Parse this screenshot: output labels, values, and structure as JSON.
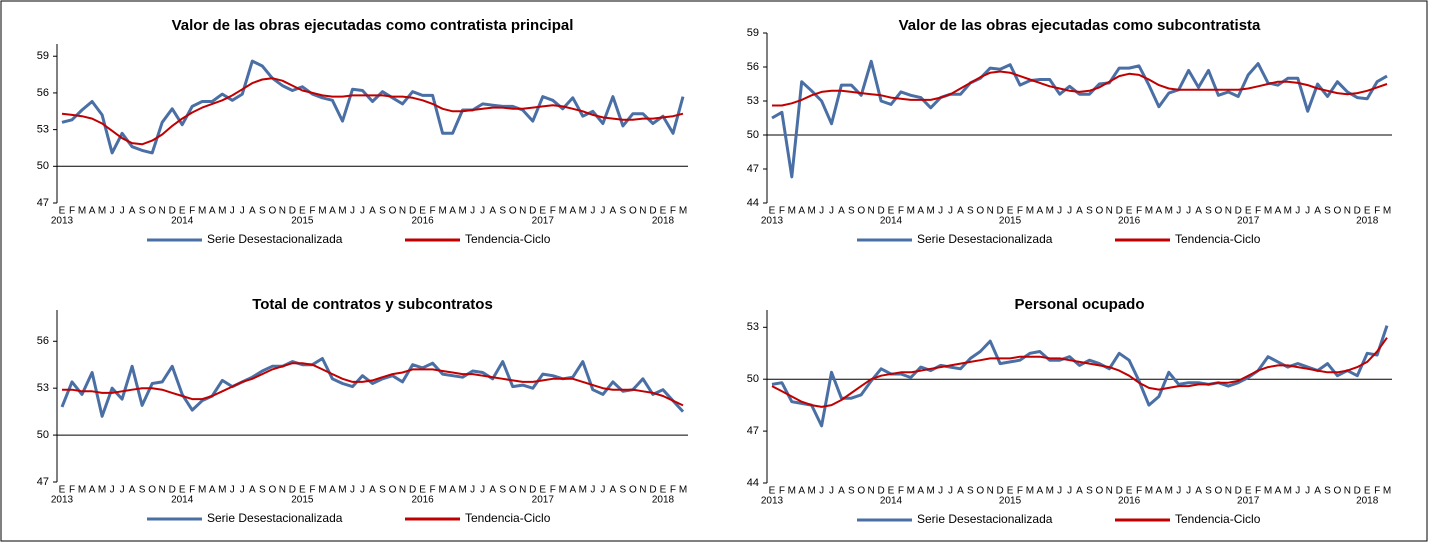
{
  "chart_data": [
    {
      "type": "line",
      "title": "Valor de las obras ejecutadas como contratista principal",
      "categories": [
        "E",
        "F",
        "M",
        "A",
        "M",
        "J",
        "J",
        "A",
        "S",
        "O",
        "N",
        "D",
        "E",
        "F",
        "M",
        "A",
        "M",
        "J",
        "J",
        "A",
        "S",
        "O",
        "N",
        "D",
        "E",
        "F",
        "M",
        "A",
        "M",
        "J",
        "J",
        "A",
        "S",
        "O",
        "N",
        "D",
        "E",
        "F",
        "M",
        "A",
        "M",
        "J",
        "J",
        "A",
        "S",
        "O",
        "N",
        "D",
        "E",
        "F",
        "M",
        "A",
        "M",
        "J",
        "J",
        "A",
        "S",
        "O",
        "N",
        "D",
        "E",
        "F",
        "M"
      ],
      "years": [
        "2013",
        null,
        null,
        null,
        null,
        null,
        null,
        null,
        null,
        null,
        null,
        null,
        "2014",
        null,
        null,
        null,
        null,
        null,
        null,
        null,
        null,
        null,
        null,
        null,
        "2015",
        null,
        null,
        null,
        null,
        null,
        null,
        null,
        null,
        null,
        null,
        null,
        "2016",
        null,
        null,
        null,
        null,
        null,
        null,
        null,
        null,
        null,
        null,
        null,
        "2017",
        null,
        null,
        null,
        null,
        null,
        null,
        null,
        null,
        null,
        null,
        null,
        "2018",
        null,
        null
      ],
      "series": [
        {
          "name": "Serie Desestacionalizada",
          "color": "#4a6fa5",
          "values": [
            53.6,
            53.8,
            54.6,
            55.3,
            54.2,
            51.1,
            52.7,
            51.6,
            51.3,
            51.1,
            53.6,
            54.7,
            53.4,
            54.9,
            55.3,
            55.3,
            55.9,
            55.4,
            55.9,
            58.6,
            58.2,
            57.2,
            56.6,
            56.2,
            56.5,
            55.9,
            55.6,
            55.4,
            53.7,
            56.3,
            56.2,
            55.3,
            56.1,
            55.6,
            55.1,
            56.1,
            55.8,
            55.8,
            52.7,
            52.7,
            54.6,
            54.6,
            55.1,
            55.0,
            54.9,
            54.9,
            54.6,
            53.7,
            55.7,
            55.4,
            54.7,
            55.6,
            54.1,
            54.5,
            53.5,
            55.7,
            53.3,
            54.3,
            54.3,
            53.5,
            54.1,
            52.7,
            55.7
          ]
        },
        {
          "name": "Tendencia-Ciclo",
          "color": "#c00000",
          "values": [
            54.3,
            54.2,
            54.1,
            53.9,
            53.5,
            52.9,
            52.3,
            51.9,
            51.8,
            52.1,
            52.6,
            53.3,
            53.9,
            54.4,
            54.8,
            55.1,
            55.4,
            55.8,
            56.3,
            56.8,
            57.1,
            57.2,
            57.0,
            56.6,
            56.2,
            56.0,
            55.8,
            55.7,
            55.7,
            55.8,
            55.8,
            55.8,
            55.8,
            55.7,
            55.7,
            55.6,
            55.4,
            55.1,
            54.7,
            54.5,
            54.5,
            54.6,
            54.7,
            54.8,
            54.8,
            54.7,
            54.7,
            54.8,
            54.9,
            55.0,
            54.9,
            54.7,
            54.5,
            54.2,
            54.0,
            53.9,
            53.8,
            53.8,
            53.9,
            53.9,
            54.0,
            54.1,
            54.3
          ]
        }
      ],
      "ylim": [
        47,
        60
      ],
      "yticks": [
        47,
        50,
        53,
        56,
        59
      ],
      "reference_line": 50,
      "legend": "bottom"
    },
    {
      "type": "line",
      "title": "Valor de las obras ejecutadas como subcontratista",
      "categories": [
        "E",
        "F",
        "M",
        "A",
        "M",
        "J",
        "J",
        "A",
        "S",
        "O",
        "N",
        "D",
        "E",
        "F",
        "M",
        "A",
        "M",
        "J",
        "J",
        "A",
        "S",
        "O",
        "N",
        "D",
        "E",
        "F",
        "M",
        "A",
        "M",
        "J",
        "J",
        "A",
        "S",
        "O",
        "N",
        "D",
        "E",
        "F",
        "M",
        "A",
        "M",
        "J",
        "J",
        "A",
        "S",
        "O",
        "N",
        "D",
        "E",
        "F",
        "M",
        "A",
        "M",
        "J",
        "J",
        "A",
        "S",
        "O",
        "N",
        "D",
        "E",
        "F",
        "M"
      ],
      "years": [
        "2013",
        null,
        null,
        null,
        null,
        null,
        null,
        null,
        null,
        null,
        null,
        null,
        "2014",
        null,
        null,
        null,
        null,
        null,
        null,
        null,
        null,
        null,
        null,
        null,
        "2015",
        null,
        null,
        null,
        null,
        null,
        null,
        null,
        null,
        null,
        null,
        null,
        "2016",
        null,
        null,
        null,
        null,
        null,
        null,
        null,
        null,
        null,
        null,
        null,
        "2017",
        null,
        null,
        null,
        null,
        null,
        null,
        null,
        null,
        null,
        null,
        null,
        "2018",
        null,
        null
      ],
      "series": [
        {
          "name": "Serie Desestacionalizada",
          "color": "#4a6fa5",
          "values": [
            51.5,
            52.0,
            46.3,
            54.7,
            53.9,
            53.0,
            51.0,
            54.4,
            54.4,
            53.5,
            56.5,
            53.0,
            52.7,
            53.8,
            53.5,
            53.3,
            52.4,
            53.3,
            53.6,
            53.6,
            54.6,
            55.0,
            55.9,
            55.8,
            56.2,
            54.4,
            54.8,
            54.9,
            54.9,
            53.6,
            54.3,
            53.6,
            53.6,
            54.5,
            54.6,
            55.9,
            55.9,
            56.1,
            54.4,
            52.5,
            53.7,
            54.0,
            55.7,
            54.2,
            55.7,
            53.5,
            53.8,
            53.4,
            55.3,
            56.3,
            54.6,
            54.4,
            55.0,
            55.0,
            52.1,
            54.5,
            53.4,
            54.7,
            53.8,
            53.3,
            53.2,
            54.7,
            55.2
          ]
        },
        {
          "name": "Tendencia-Ciclo",
          "color": "#c00000",
          "values": [
            52.6,
            52.6,
            52.8,
            53.1,
            53.5,
            53.8,
            53.9,
            53.9,
            53.8,
            53.7,
            53.6,
            53.5,
            53.3,
            53.2,
            53.1,
            53.1,
            53.1,
            53.3,
            53.6,
            54.1,
            54.6,
            55.1,
            55.5,
            55.6,
            55.5,
            55.2,
            54.9,
            54.6,
            54.3,
            54.1,
            53.9,
            53.8,
            53.9,
            54.2,
            54.7,
            55.2,
            55.4,
            55.3,
            54.9,
            54.4,
            54.1,
            54.0,
            54.0,
            54.0,
            54.0,
            54.0,
            54.0,
            54.0,
            54.1,
            54.3,
            54.5,
            54.7,
            54.7,
            54.6,
            54.4,
            54.1,
            53.9,
            53.7,
            53.6,
            53.7,
            53.9,
            54.2,
            54.5
          ]
        }
      ],
      "ylim": [
        44,
        59
      ],
      "yticks": [
        44,
        47,
        50,
        53,
        56,
        59
      ],
      "reference_line": 50,
      "legend": "bottom"
    },
    {
      "type": "line",
      "title": "Total de contratos y subcontratos",
      "categories": [
        "E",
        "F",
        "M",
        "A",
        "M",
        "J",
        "J",
        "A",
        "S",
        "O",
        "N",
        "D",
        "E",
        "F",
        "M",
        "A",
        "M",
        "J",
        "J",
        "A",
        "S",
        "O",
        "N",
        "D",
        "E",
        "F",
        "M",
        "A",
        "M",
        "J",
        "J",
        "A",
        "S",
        "O",
        "N",
        "D",
        "E",
        "F",
        "M",
        "A",
        "M",
        "J",
        "J",
        "A",
        "S",
        "O",
        "N",
        "D",
        "E",
        "F",
        "M",
        "A",
        "M",
        "J",
        "J",
        "A",
        "S",
        "O",
        "N",
        "D",
        "E",
        "F",
        "M"
      ],
      "years": [
        "2013",
        null,
        null,
        null,
        null,
        null,
        null,
        null,
        null,
        null,
        null,
        null,
        "2014",
        null,
        null,
        null,
        null,
        null,
        null,
        null,
        null,
        null,
        null,
        null,
        "2015",
        null,
        null,
        null,
        null,
        null,
        null,
        null,
        null,
        null,
        null,
        null,
        "2016",
        null,
        null,
        null,
        null,
        null,
        null,
        null,
        null,
        null,
        null,
        null,
        "2017",
        null,
        null,
        null,
        null,
        null,
        null,
        null,
        null,
        null,
        null,
        null,
        "2018",
        null,
        null
      ],
      "series": [
        {
          "name": "Serie Desestacionalizada",
          "color": "#4a6fa5",
          "values": [
            51.8,
            53.4,
            52.6,
            54.0,
            51.2,
            53.0,
            52.3,
            54.4,
            51.9,
            53.3,
            53.4,
            54.4,
            52.6,
            51.6,
            52.2,
            52.5,
            53.5,
            53.1,
            53.4,
            53.7,
            54.1,
            54.4,
            54.4,
            54.7,
            54.5,
            54.5,
            54.9,
            53.6,
            53.3,
            53.1,
            53.8,
            53.3,
            53.6,
            53.8,
            53.4,
            54.5,
            54.3,
            54.6,
            53.9,
            53.8,
            53.7,
            54.1,
            54.0,
            53.6,
            54.7,
            53.1,
            53.2,
            53.0,
            53.9,
            53.8,
            53.6,
            53.7,
            54.7,
            52.9,
            52.6,
            53.4,
            52.8,
            52.9,
            53.6,
            52.6,
            52.9,
            52.2,
            51.5
          ]
        },
        {
          "name": "Tendencia-Ciclo",
          "color": "#c00000",
          "values": [
            52.9,
            52.9,
            52.8,
            52.8,
            52.7,
            52.7,
            52.8,
            52.9,
            53.0,
            53.0,
            52.9,
            52.7,
            52.5,
            52.3,
            52.3,
            52.5,
            52.8,
            53.1,
            53.4,
            53.6,
            53.9,
            54.2,
            54.4,
            54.6,
            54.6,
            54.5,
            54.2,
            53.9,
            53.6,
            53.4,
            53.4,
            53.5,
            53.7,
            53.9,
            54.0,
            54.2,
            54.2,
            54.2,
            54.1,
            54.0,
            53.9,
            53.9,
            53.8,
            53.7,
            53.6,
            53.5,
            53.4,
            53.4,
            53.5,
            53.6,
            53.6,
            53.6,
            53.4,
            53.2,
            53.0,
            52.9,
            52.9,
            52.9,
            52.8,
            52.7,
            52.5,
            52.2,
            51.9
          ]
        }
      ],
      "ylim": [
        47,
        58
      ],
      "yticks": [
        47,
        50,
        53,
        56
      ],
      "reference_line": 50,
      "legend": "bottom"
    },
    {
      "type": "line",
      "title": "Personal ocupado",
      "categories": [
        "E",
        "F",
        "M",
        "A",
        "M",
        "J",
        "J",
        "A",
        "S",
        "O",
        "N",
        "D",
        "E",
        "F",
        "M",
        "A",
        "M",
        "J",
        "J",
        "A",
        "S",
        "O",
        "N",
        "D",
        "E",
        "F",
        "M",
        "A",
        "M",
        "J",
        "J",
        "A",
        "S",
        "O",
        "N",
        "D",
        "E",
        "F",
        "M",
        "A",
        "M",
        "J",
        "J",
        "A",
        "S",
        "O",
        "N",
        "D",
        "E",
        "F",
        "M",
        "A",
        "M",
        "J",
        "J",
        "A",
        "S",
        "O",
        "N",
        "D",
        "E",
        "F",
        "M"
      ],
      "years": [
        "2013",
        null,
        null,
        null,
        null,
        null,
        null,
        null,
        null,
        null,
        null,
        null,
        "2014",
        null,
        null,
        null,
        null,
        null,
        null,
        null,
        null,
        null,
        null,
        null,
        "2015",
        null,
        null,
        null,
        null,
        null,
        null,
        null,
        null,
        null,
        null,
        null,
        "2016",
        null,
        null,
        null,
        null,
        null,
        null,
        null,
        null,
        null,
        null,
        null,
        "2017",
        null,
        null,
        null,
        null,
        null,
        null,
        null,
        null,
        null,
        null,
        null,
        "2018",
        null,
        null
      ],
      "series": [
        {
          "name": "Serie Desestacionalizada",
          "color": "#4a6fa5",
          "values": [
            49.7,
            49.8,
            48.7,
            48.6,
            48.5,
            47.3,
            50.4,
            48.9,
            48.9,
            49.1,
            49.9,
            50.6,
            50.3,
            50.3,
            50.1,
            50.7,
            50.5,
            50.8,
            50.7,
            50.6,
            51.2,
            51.6,
            52.2,
            50.9,
            51.0,
            51.1,
            51.5,
            51.6,
            51.1,
            51.1,
            51.3,
            50.8,
            51.1,
            50.9,
            50.6,
            51.5,
            51.1,
            49.9,
            48.5,
            49.0,
            50.4,
            49.7,
            49.8,
            49.8,
            49.7,
            49.8,
            49.6,
            49.8,
            50.1,
            50.5,
            51.3,
            51.0,
            50.7,
            50.9,
            50.7,
            50.5,
            50.9,
            50.2,
            50.5,
            50.2,
            51.5,
            51.4,
            53.1
          ]
        },
        {
          "name": "Tendencia-Ciclo",
          "color": "#c00000",
          "values": [
            49.6,
            49.3,
            49.0,
            48.7,
            48.5,
            48.4,
            48.5,
            48.8,
            49.2,
            49.6,
            50.0,
            50.2,
            50.3,
            50.4,
            50.4,
            50.5,
            50.6,
            50.7,
            50.8,
            50.9,
            51.0,
            51.1,
            51.2,
            51.2,
            51.2,
            51.3,
            51.3,
            51.3,
            51.2,
            51.2,
            51.1,
            51.0,
            50.9,
            50.8,
            50.7,
            50.5,
            50.2,
            49.8,
            49.5,
            49.4,
            49.5,
            49.6,
            49.6,
            49.7,
            49.7,
            49.8,
            49.8,
            49.9,
            50.2,
            50.5,
            50.7,
            50.8,
            50.8,
            50.7,
            50.6,
            50.5,
            50.4,
            50.4,
            50.5,
            50.7,
            51.0,
            51.6,
            52.4
          ]
        }
      ],
      "ylim": [
        44,
        54
      ],
      "yticks": [
        44,
        47,
        50,
        53
      ],
      "reference_line": 50,
      "legend": "bottom"
    }
  ]
}
